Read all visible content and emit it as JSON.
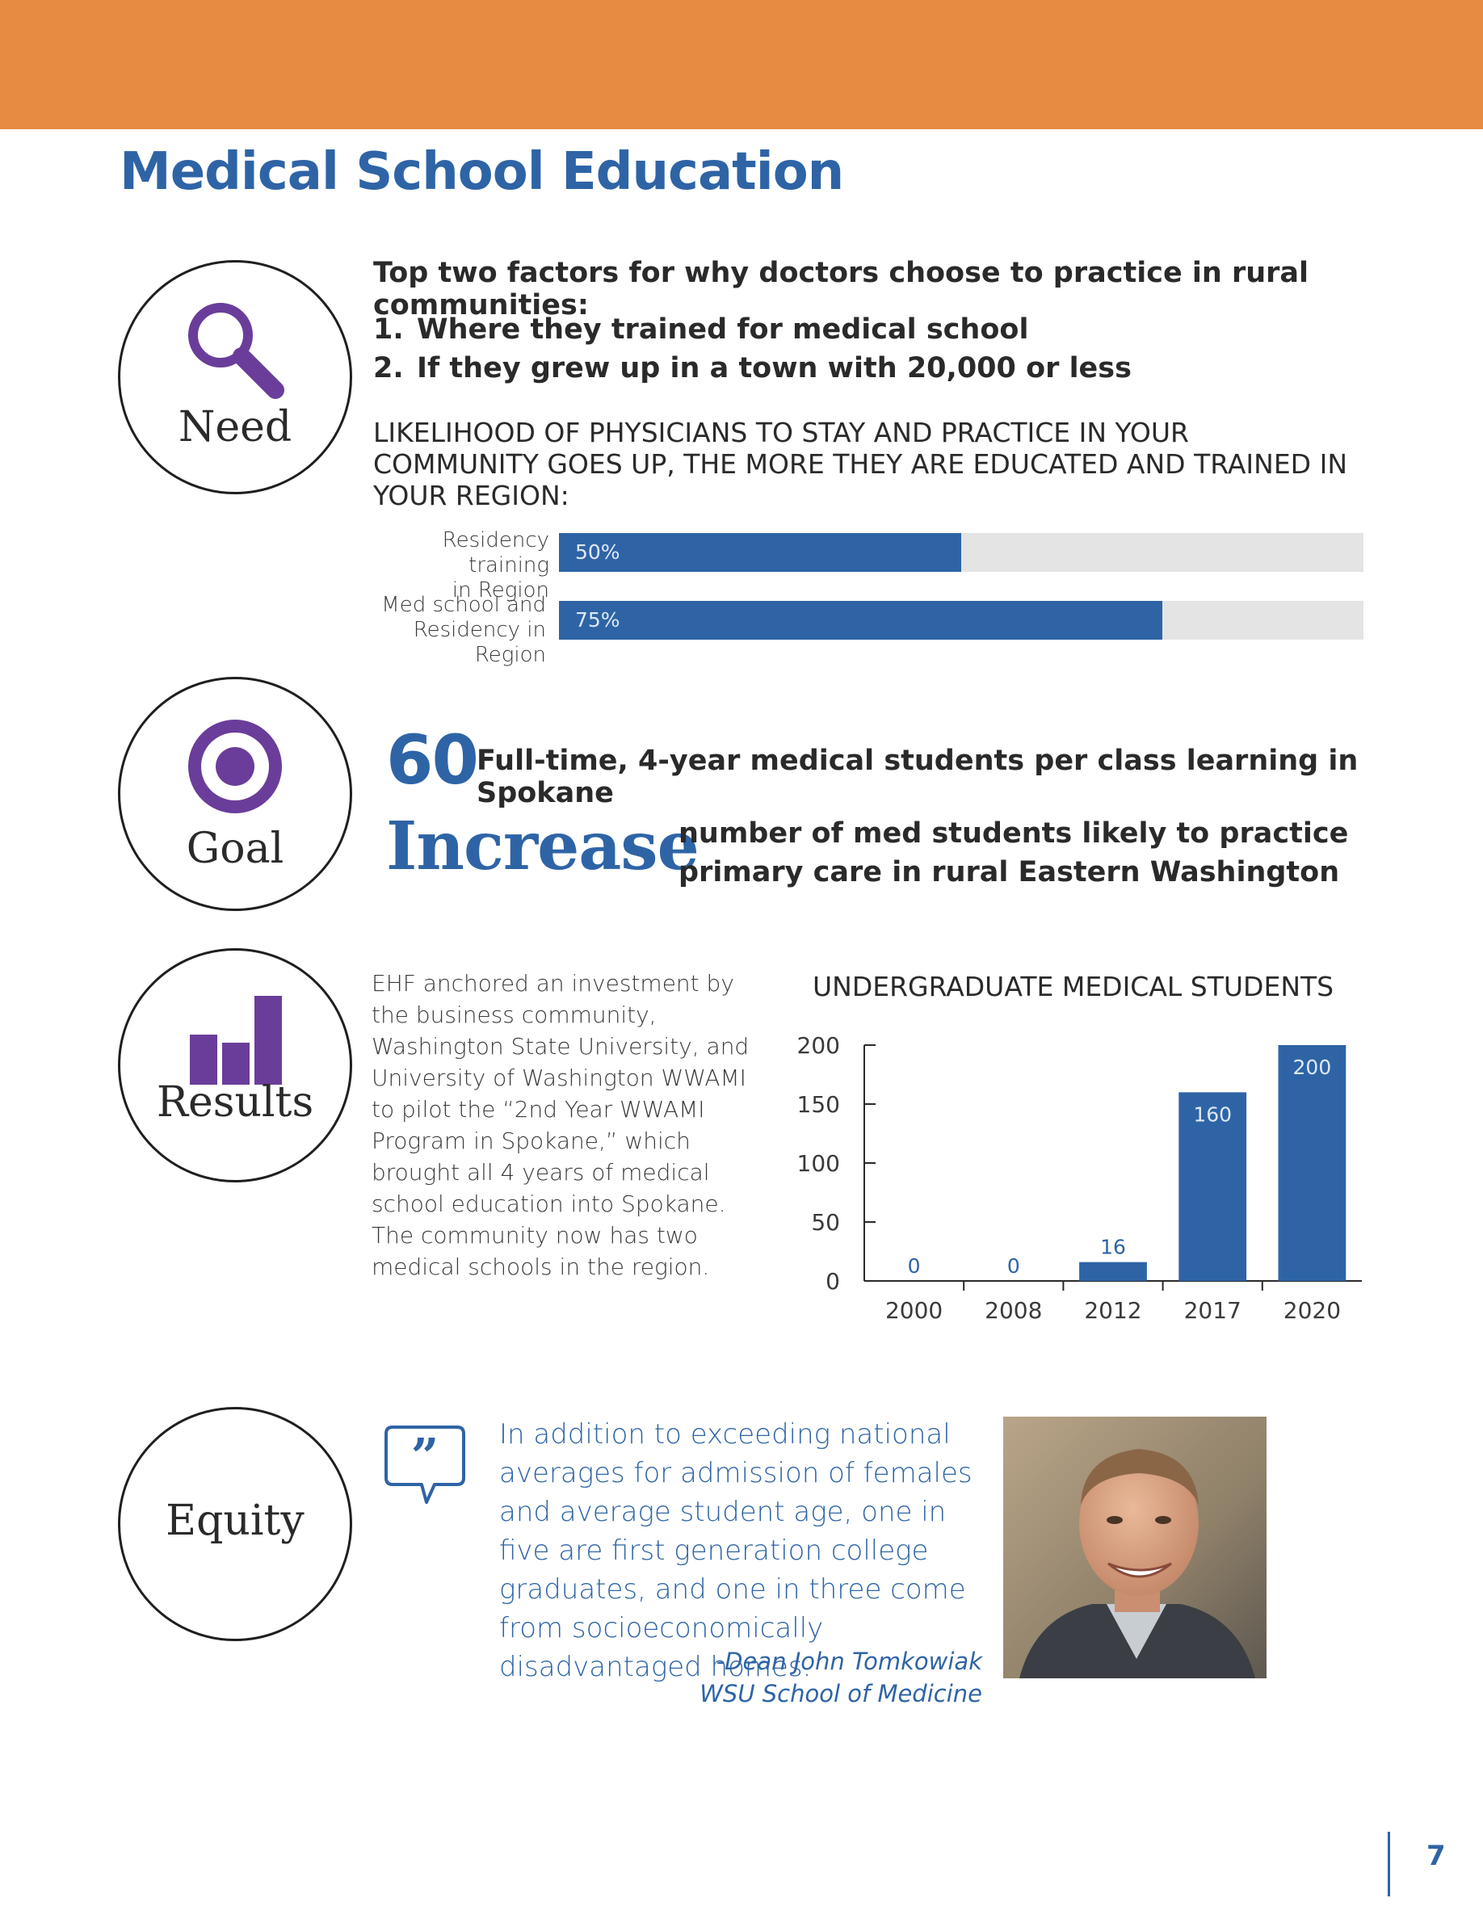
{
  "page": {
    "title": "Medical School Education",
    "page_number": "7"
  },
  "need": {
    "label": "Need",
    "icon": "magnifying-glass-icon",
    "factors_heading": "Top two factors for why doctors choose to practice in rural communities:",
    "factors": [
      {
        "num": "1.",
        "text": "Where they trained for medical school"
      },
      {
        "num": "2.",
        "text": "If they grew up in a town with 20,000 or less"
      }
    ],
    "likelihood_text": "LIKELIHOOD OF PHYSICIANS TO STAY AND PRACTICE IN YOUR COMMUNITY GOES UP, THE MORE THEY ARE EDUCATED AND TRAINED IN YOUR REGION:",
    "bars": [
      {
        "label_line1": "Residency training",
        "label_line2": "in Region",
        "value_label": "50%",
        "value": 50
      },
      {
        "label_line1": "Med school and",
        "label_line2": "Residency in Region",
        "value_label": "75%",
        "value": 75
      }
    ]
  },
  "goal": {
    "label": "Goal",
    "icon": "target-icon",
    "big_number": "60",
    "big_number_text": "Full-time, 4-year medical students per class learning in Spokane",
    "big_word": "Increase",
    "big_word_text": "number of med students likely to practice primary care in rural Eastern Washington"
  },
  "results": {
    "label": "Results",
    "icon": "bar-chart-icon",
    "paragraph": "EHF anchored an investment by the business community, Washington State University, and University of Washington WWAMI to pilot the “2nd Year WWAMI Program in Spokane,” which brought all 4 years of medical school education into Spokane. The community now has two medical schools in the region."
  },
  "chart_data": {
    "type": "bar",
    "title": "UNDERGRADUATE MEDICAL STUDENTS",
    "categories": [
      "2000",
      "2008",
      "2012",
      "2017",
      "2020"
    ],
    "values": [
      0,
      0,
      16,
      160,
      200
    ],
    "value_labels": [
      "0",
      "0",
      "16",
      "160",
      "200"
    ],
    "yticks": [
      "0",
      "50",
      "100",
      "150",
      "200"
    ],
    "ylim": [
      0,
      200
    ],
    "grid": false,
    "bar_color": "#2e64a6"
  },
  "equity": {
    "label": "Equity",
    "quote_icon": "quote-bubble-icon",
    "quote": "In addition to exceeding national averages for admission of females and average student age, one in five are first generation college graduates, and one in three come from socioeconomically disadvantaged homes.",
    "attribution_name": "-Dean John Tomkowiak",
    "attribution_org": "WSU School of Medicine"
  },
  "colors": {
    "accent_orange": "#e78a42",
    "brand_blue": "#2e64a6",
    "icon_purple": "#6a3d9a"
  }
}
